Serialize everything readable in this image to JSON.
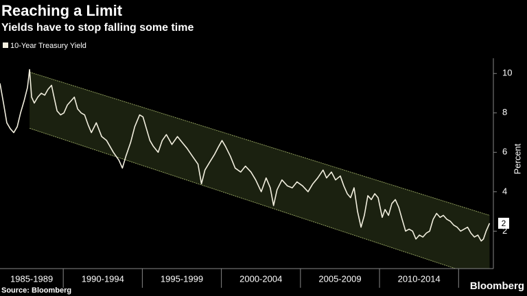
{
  "chart_data": {
    "type": "line",
    "title": "Reaching a Limit",
    "subtitle": "Yields have to stop falling some time",
    "y_label": "Percent",
    "source": "Source: Bloomberg",
    "brand": "Bloomberg",
    "xlim": [
      1986,
      2017.2
    ],
    "ylim": [
      0.1,
      10.6
    ],
    "yticks": [
      2,
      4,
      6,
      8,
      10
    ],
    "xbands": [
      {
        "start": 1985,
        "end": 1990,
        "label": "1985-1989"
      },
      {
        "start": 1990,
        "end": 1995,
        "label": "1990-1994"
      },
      {
        "start": 1995,
        "end": 2000,
        "label": "1995-1999"
      },
      {
        "start": 2000,
        "end": 2005,
        "label": "2000-2004"
      },
      {
        "start": 2005,
        "end": 2010,
        "label": "2005-2009"
      },
      {
        "start": 2010,
        "end": 2015,
        "label": "2010-2014"
      }
    ],
    "channel": {
      "color": "#1b2110",
      "line_color": "#8e9c5c",
      "upper": [
        [
          1987.87,
          10.07
        ],
        [
          2016.96,
          2.8
        ]
      ],
      "lower": [
        [
          1987.87,
          7.22
        ],
        [
          2016.96,
          -0.47
        ]
      ]
    },
    "x": [
      1986.0,
      1986.22,
      1986.43,
      1986.65,
      1986.87,
      1987.09,
      1987.3,
      1987.52,
      1987.74,
      1987.87,
      1988.0,
      1988.17,
      1988.39,
      1988.61,
      1988.83,
      1989.04,
      1989.26,
      1989.39,
      1989.61,
      1989.83,
      1990.04,
      1990.26,
      1990.48,
      1990.7,
      1990.91,
      1991.13,
      1991.35,
      1991.57,
      1991.78,
      1992.09,
      1992.43,
      1992.74,
      1993.17,
      1993.52,
      1993.74,
      1993.96,
      1994.26,
      1994.52,
      1994.83,
      1995.04,
      1995.26,
      1995.48,
      1995.7,
      1996.0,
      1996.26,
      1996.52,
      1996.87,
      1997.22,
      1997.52,
      1997.83,
      1998.17,
      1998.52,
      1998.74,
      1998.96,
      1999.26,
      1999.57,
      1999.83,
      2000.04,
      2000.26,
      2000.57,
      2000.87,
      2001.22,
      2001.52,
      2001.87,
      2002.17,
      2002.52,
      2002.83,
      2003.09,
      2003.3,
      2003.52,
      2003.83,
      2004.17,
      2004.48,
      2004.78,
      2005.13,
      2005.48,
      2005.78,
      2006.09,
      2006.43,
      2006.65,
      2006.96,
      2007.22,
      2007.52,
      2007.74,
      2007.96,
      2008.17,
      2008.39,
      2008.61,
      2008.83,
      2009.04,
      2009.26,
      2009.48,
      2009.7,
      2009.91,
      2010.17,
      2010.35,
      2010.57,
      2010.78,
      2011.0,
      2011.22,
      2011.43,
      2011.65,
      2011.87,
      2012.09,
      2012.3,
      2012.52,
      2012.74,
      2012.96,
      2013.17,
      2013.39,
      2013.61,
      2013.83,
      2014.04,
      2014.26,
      2014.48,
      2014.7,
      2014.91,
      2015.13,
      2015.35,
      2015.57,
      2015.78,
      2016.0,
      2016.22,
      2016.43,
      2016.57,
      2016.74,
      2016.96
    ],
    "series": [
      {
        "name": "10-Year Treasury Yield",
        "color": "#f2efdf",
        "values": [
          9.5,
          8.5,
          7.5,
          7.2,
          7.0,
          7.3,
          8.0,
          8.6,
          9.3,
          10.2,
          8.8,
          8.5,
          8.8,
          9.0,
          8.9,
          9.2,
          9.4,
          8.9,
          8.1,
          7.9,
          8.0,
          8.4,
          8.6,
          8.8,
          8.2,
          8.0,
          7.9,
          7.4,
          7.0,
          7.5,
          6.8,
          6.6,
          6.0,
          5.6,
          5.2,
          5.8,
          6.5,
          7.3,
          7.9,
          7.8,
          7.2,
          6.6,
          6.3,
          6.0,
          6.6,
          6.9,
          6.4,
          6.8,
          6.5,
          6.2,
          5.8,
          5.4,
          4.4,
          5.1,
          5.5,
          5.9,
          6.3,
          6.6,
          6.3,
          5.8,
          5.2,
          5.0,
          5.3,
          5.0,
          4.6,
          4.0,
          4.7,
          4.2,
          3.3,
          4.1,
          4.6,
          4.3,
          4.2,
          4.5,
          4.3,
          4.0,
          4.4,
          4.7,
          5.1,
          4.7,
          5.0,
          4.6,
          4.8,
          4.3,
          3.9,
          3.7,
          4.2,
          3.0,
          2.2,
          2.8,
          3.8,
          3.6,
          3.9,
          3.7,
          2.7,
          3.1,
          2.8,
          3.4,
          3.6,
          3.2,
          2.6,
          2.0,
          2.1,
          2.0,
          1.6,
          1.8,
          1.7,
          1.9,
          2.0,
          2.6,
          2.9,
          2.7,
          2.8,
          2.6,
          2.5,
          2.3,
          2.2,
          2.0,
          2.1,
          2.2,
          1.9,
          1.7,
          1.8,
          1.5,
          1.6,
          2.0,
          2.4
        ],
        "value_labels": [
          null,
          null,
          null,
          null,
          null,
          null,
          null,
          null,
          null,
          null,
          null,
          null,
          null,
          null,
          null,
          null,
          null,
          null,
          null,
          null,
          null,
          null,
          null,
          null,
          null,
          null,
          null,
          null,
          null,
          null,
          null,
          null,
          null,
          null,
          null,
          null,
          null,
          null,
          null,
          null,
          null,
          null,
          null,
          null,
          null,
          null,
          null,
          null,
          null,
          null,
          null,
          null,
          null,
          null,
          null,
          null,
          null,
          null,
          null,
          null,
          null,
          null,
          null,
          null,
          null,
          null,
          null,
          null,
          null,
          null,
          null,
          null,
          null,
          null,
          null,
          null,
          null,
          null,
          null,
          null,
          null,
          null,
          null,
          null,
          null,
          null,
          null,
          null,
          null,
          null,
          null,
          null,
          null,
          null,
          null,
          null,
          null,
          null,
          null,
          null,
          null,
          null,
          null,
          null,
          null,
          null,
          null,
          null,
          null,
          null,
          null,
          null,
          null,
          null,
          null,
          null,
          null,
          null,
          null,
          null,
          null,
          null,
          null,
          null,
          null,
          null,
          "2"
        ]
      }
    ]
  }
}
